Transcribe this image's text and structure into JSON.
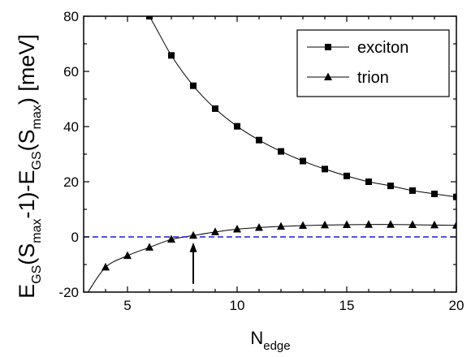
{
  "chart_data": {
    "type": "line",
    "xlabel": {
      "main": "N",
      "sub": "edge"
    },
    "ylabel": {
      "parts": [
        {
          "t": "E",
          "s": false
        },
        {
          "t": "GS",
          "s": true
        },
        {
          "t": "(S",
          "s": false
        },
        {
          "t": "max",
          "s": true
        },
        {
          "t": "-1)-E",
          "s": false
        },
        {
          "t": "GS",
          "s": true
        },
        {
          "t": "(S",
          "s": false
        },
        {
          "t": "max",
          "s": true
        },
        {
          "t": ") [meV]",
          "s": false
        }
      ]
    },
    "xlim": [
      3,
      20
    ],
    "ylim": [
      -20,
      80
    ],
    "xticks": [
      5,
      10,
      15,
      20
    ],
    "yticks": [
      -20,
      0,
      20,
      40,
      60,
      80
    ],
    "grid": false,
    "legend_position": "top-right",
    "series": [
      {
        "name": "exciton",
        "marker": "square",
        "color": "#000000",
        "x": [
          6,
          7,
          8,
          9,
          10,
          11,
          12,
          13,
          14,
          15,
          16,
          17,
          18,
          19,
          20
        ],
        "y": [
          80,
          65.8,
          54.8,
          46.5,
          40.1,
          35.1,
          31.0,
          27.5,
          24.6,
          22.1,
          20.0,
          18.5,
          16.8,
          15.6,
          14.5
        ],
        "curve_from_x": 4.5,
        "curve_from_y": 100
      },
      {
        "name": "trion",
        "marker": "triangle",
        "color": "#000000",
        "x": [
          4,
          5,
          6,
          7,
          8,
          9,
          10,
          11,
          12,
          13,
          14,
          15,
          16,
          17,
          18,
          19,
          20
        ],
        "y": [
          -11.0,
          -6.8,
          -3.8,
          -0.9,
          0.5,
          1.8,
          2.8,
          3.4,
          3.8,
          4.1,
          4.3,
          4.4,
          4.5,
          4.5,
          4.4,
          4.3,
          4.2
        ],
        "curve_from_x": 3.2,
        "curve_from_y": -20
      }
    ],
    "reference_line": {
      "y": 0,
      "style": "dashed",
      "color": "#1a1adc"
    },
    "annotation_arrow": {
      "x": 8,
      "from_y": -17,
      "to_y": -2
    }
  }
}
